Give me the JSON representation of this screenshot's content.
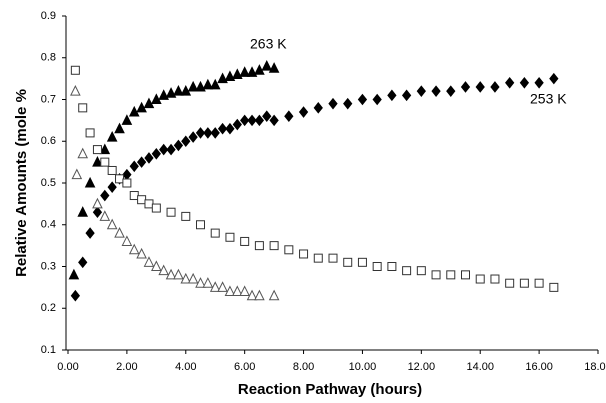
{
  "chart_data": {
    "type": "scatter",
    "xlabel": "Reaction Pathway (hours)",
    "ylabel": "Relative Amounts (mole %",
    "annotations": [
      "263 K",
      "253 K"
    ],
    "xlim": [
      0,
      18
    ],
    "xticks": [
      {
        "value": 0,
        "label": "0.00"
      },
      {
        "value": 2,
        "label": "2.00"
      },
      {
        "value": 4,
        "label": "4.00"
      },
      {
        "value": 6,
        "label": "6.00"
      },
      {
        "value": 8,
        "label": "8.00"
      },
      {
        "value": 10,
        "label": "10.00"
      },
      {
        "value": 12,
        "label": "12.00"
      },
      {
        "value": 14,
        "label": "14.00"
      },
      {
        "value": 16,
        "label": "16.00"
      },
      {
        "value": 18,
        "label": "18.00"
      }
    ],
    "ylim": [
      0.1,
      0.9
    ],
    "yticks": [
      0.1,
      0.2,
      0.3,
      0.4,
      0.5,
      0.6,
      0.7,
      0.8,
      0.9
    ],
    "grid": false,
    "series": [
      {
        "marker": "triangle",
        "filled": true,
        "color": "#000000",
        "x": [
          0.2,
          0.5,
          0.75,
          1.0,
          1.25,
          1.5,
          1.75,
          2.0,
          2.25,
          2.5,
          2.75,
          3.0,
          3.25,
          3.5,
          3.75,
          4.0,
          4.25,
          4.5,
          4.75,
          5.0,
          5.25,
          5.5,
          5.75,
          6.0,
          6.25,
          6.5,
          6.75,
          7.0
        ],
        "values": [
          0.28,
          0.43,
          0.5,
          0.55,
          0.58,
          0.61,
          0.63,
          0.65,
          0.67,
          0.68,
          0.69,
          0.7,
          0.71,
          0.715,
          0.72,
          0.72,
          0.73,
          0.73,
          0.735,
          0.735,
          0.75,
          0.755,
          0.76,
          0.765,
          0.765,
          0.77,
          0.78,
          0.775
        ]
      },
      {
        "marker": "diamond",
        "filled": true,
        "color": "#000000",
        "x": [
          0.25,
          0.5,
          0.75,
          1.0,
          1.25,
          1.5,
          1.75,
          2.0,
          2.25,
          2.5,
          2.75,
          3.0,
          3.25,
          3.5,
          3.75,
          4.0,
          4.25,
          4.5,
          4.75,
          5.0,
          5.25,
          5.5,
          5.75,
          6.0,
          6.25,
          6.5,
          6.75,
          7.0,
          7.5,
          8.0,
          8.5,
          9.0,
          9.5,
          10.0,
          10.5,
          11.0,
          11.5,
          12.0,
          12.5,
          13.0,
          13.5,
          14.0,
          14.5,
          15.0,
          15.5,
          16.0,
          16.5
        ],
        "values": [
          0.23,
          0.31,
          0.38,
          0.43,
          0.47,
          0.49,
          0.51,
          0.52,
          0.54,
          0.55,
          0.56,
          0.57,
          0.58,
          0.58,
          0.59,
          0.6,
          0.61,
          0.62,
          0.62,
          0.62,
          0.63,
          0.63,
          0.64,
          0.65,
          0.65,
          0.65,
          0.66,
          0.65,
          0.66,
          0.67,
          0.68,
          0.69,
          0.69,
          0.7,
          0.7,
          0.71,
          0.71,
          0.72,
          0.72,
          0.72,
          0.73,
          0.73,
          0.73,
          0.74,
          0.74,
          0.74,
          0.75
        ]
      },
      {
        "marker": "square",
        "filled": false,
        "color": "#333333",
        "x": [
          0.25,
          0.5,
          0.75,
          1.0,
          1.25,
          1.5,
          1.75,
          2.0,
          2.25,
          2.5,
          2.75,
          3.0,
          3.5,
          4.0,
          4.5,
          5.0,
          5.5,
          6.0,
          6.5,
          7.0,
          7.5,
          8.0,
          8.5,
          9.0,
          9.5,
          10.0,
          10.5,
          11.0,
          11.5,
          12.0,
          12.5,
          13.0,
          13.5,
          14.0,
          14.5,
          15.0,
          15.5,
          16.0,
          16.5
        ],
        "values": [
          0.77,
          0.68,
          0.62,
          0.58,
          0.55,
          0.53,
          0.51,
          0.5,
          0.47,
          0.46,
          0.45,
          0.44,
          0.43,
          0.42,
          0.4,
          0.38,
          0.37,
          0.36,
          0.35,
          0.35,
          0.34,
          0.33,
          0.32,
          0.32,
          0.31,
          0.31,
          0.3,
          0.3,
          0.29,
          0.29,
          0.28,
          0.28,
          0.28,
          0.27,
          0.27,
          0.26,
          0.26,
          0.26,
          0.25
        ]
      },
      {
        "marker": "triangle",
        "filled": false,
        "color": "#555555",
        "x": [
          0.25,
          0.3,
          0.5,
          1.0,
          1.25,
          1.5,
          1.75,
          2.0,
          2.25,
          2.5,
          2.75,
          3.0,
          3.25,
          3.5,
          3.75,
          4.0,
          4.25,
          4.5,
          4.75,
          5.0,
          5.25,
          5.5,
          5.75,
          6.0,
          6.25,
          6.5,
          7.0
        ],
        "values": [
          0.72,
          0.52,
          0.57,
          0.45,
          0.42,
          0.4,
          0.38,
          0.36,
          0.34,
          0.33,
          0.31,
          0.3,
          0.29,
          0.28,
          0.28,
          0.27,
          0.27,
          0.26,
          0.26,
          0.25,
          0.25,
          0.24,
          0.24,
          0.24,
          0.23,
          0.23,
          0.23
        ]
      }
    ]
  }
}
